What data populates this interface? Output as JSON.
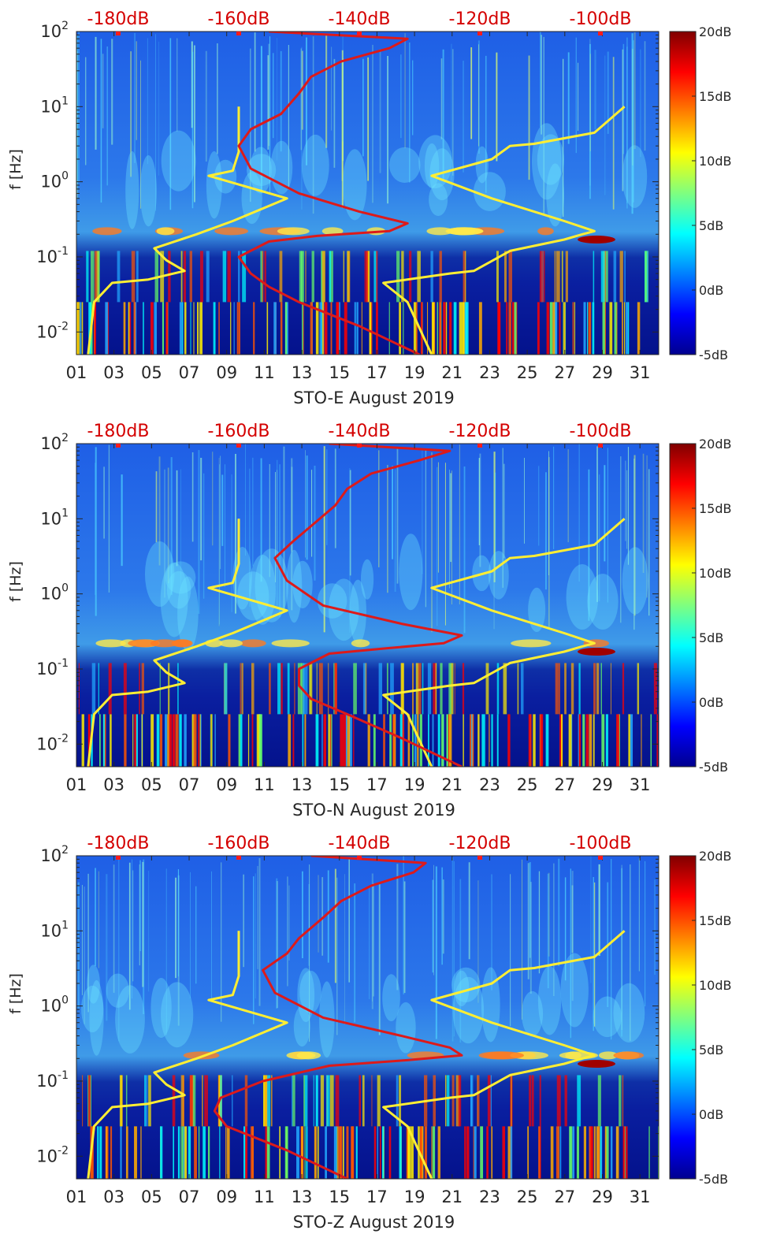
{
  "chart_data": [
    {
      "type": "heatmap",
      "xlabel": "STO-E August 2019",
      "ylabel": "f [Hz]",
      "xticks": [
        "01",
        "03",
        "05",
        "07",
        "09",
        "11",
        "13",
        "15",
        "17",
        "19",
        "21",
        "23",
        "25",
        "27",
        "29",
        "31"
      ],
      "yscale": "log",
      "ylim": [
        0.005,
        100
      ],
      "yticks": [
        {
          "base": "10",
          "exp": "-2"
        },
        {
          "base": "10",
          "exp": "-1"
        },
        {
          "base": "10",
          "exp": "0"
        },
        {
          "base": "10",
          "exp": "1"
        },
        {
          "base": "10",
          "exp": "2"
        }
      ],
      "top_axis_ticks": [
        "-180dB",
        "-160dB",
        "-140dB",
        "-120dB",
        "-100dB"
      ],
      "colorbar": {
        "ticks": [
          "20dB",
          "15dB",
          "10dB",
          "5dB",
          "0dB",
          "-5dB"
        ],
        "range": [
          -5,
          20
        ],
        "colormap": "jet"
      },
      "series": [
        {
          "color": "#ffee33",
          "points": [
            [
              -185,
              0.005
            ],
            [
              -184,
              0.025
            ],
            [
              -181,
              0.045
            ],
            [
              -175,
              0.05
            ],
            [
              -169,
              0.065
            ],
            [
              -172,
              0.09
            ],
            [
              -174,
              0.13
            ],
            [
              -167,
              0.2
            ],
            [
              -161,
              0.3
            ],
            [
              -152,
              0.6
            ],
            [
              -165,
              1.2
            ],
            [
              -161,
              1.4
            ],
            [
              -160,
              2.5
            ],
            [
              -160,
              5
            ],
            [
              -160,
              10
            ]
          ]
        },
        {
          "color": "#ffee33",
          "points": [
            [
              -128,
              0.005
            ],
            [
              -132,
              0.025
            ],
            [
              -136,
              0.045
            ],
            [
              -125,
              0.06
            ],
            [
              -121,
              0.065
            ],
            [
              -115,
              0.12
            ],
            [
              -111,
              0.14
            ],
            [
              -106,
              0.17
            ],
            [
              -103,
              0.2
            ],
            [
              -101,
              0.22
            ],
            [
              -106,
              0.3
            ],
            [
              -118,
              0.6
            ],
            [
              -128,
              1.2
            ],
            [
              -118,
              2
            ],
            [
              -115,
              3
            ],
            [
              -111,
              3.2
            ],
            [
              -101,
              4.5
            ],
            [
              -96,
              10
            ]
          ]
        },
        {
          "color": "#dd1a1a",
          "points": [
            [
              -130,
              0.005
            ],
            [
              -140,
              0.012
            ],
            [
              -150,
              0.025
            ],
            [
              -155,
              0.04
            ],
            [
              -158,
              0.06
            ],
            [
              -160,
              0.1
            ],
            [
              -155,
              0.16
            ],
            [
              -147,
              0.19
            ],
            [
              -135,
              0.22
            ],
            [
              -132,
              0.28
            ],
            [
              -140,
              0.4
            ],
            [
              -150,
              0.7
            ],
            [
              -158,
              1.5
            ],
            [
              -160,
              3
            ],
            [
              -158,
              5
            ],
            [
              -153,
              8
            ],
            [
              -150,
              15
            ],
            [
              -148,
              25
            ],
            [
              -143,
              40
            ],
            [
              -135,
              60
            ],
            [
              -132,
              80
            ],
            [
              -155,
              100
            ]
          ]
        }
      ]
    },
    {
      "type": "heatmap",
      "xlabel": "STO-N August 2019",
      "ylabel": "f [Hz]",
      "xticks": [
        "01",
        "03",
        "05",
        "07",
        "09",
        "11",
        "13",
        "15",
        "17",
        "19",
        "21",
        "23",
        "25",
        "27",
        "29",
        "31"
      ],
      "yscale": "log",
      "ylim": [
        0.005,
        100
      ],
      "yticks": [
        {
          "base": "10",
          "exp": "-2"
        },
        {
          "base": "10",
          "exp": "-1"
        },
        {
          "base": "10",
          "exp": "0"
        },
        {
          "base": "10",
          "exp": "1"
        },
        {
          "base": "10",
          "exp": "2"
        }
      ],
      "top_axis_ticks": [
        "-180dB",
        "-160dB",
        "-140dB",
        "-120dB",
        "-100dB"
      ],
      "colorbar": {
        "ticks": [
          "20dB",
          "15dB",
          "10dB",
          "5dB",
          "0dB",
          "-5dB"
        ],
        "range": [
          -5,
          20
        ],
        "colormap": "jet"
      },
      "series": [
        {
          "color": "#ffee33",
          "points": [
            [
              -185,
              0.005
            ],
            [
              -184,
              0.025
            ],
            [
              -181,
              0.045
            ],
            [
              -175,
              0.05
            ],
            [
              -169,
              0.065
            ],
            [
              -172,
              0.09
            ],
            [
              -174,
              0.13
            ],
            [
              -167,
              0.2
            ],
            [
              -161,
              0.3
            ],
            [
              -152,
              0.6
            ],
            [
              -165,
              1.2
            ],
            [
              -161,
              1.4
            ],
            [
              -160,
              2.5
            ],
            [
              -160,
              5
            ],
            [
              -160,
              10
            ]
          ]
        },
        {
          "color": "#ffee33",
          "points": [
            [
              -128,
              0.005
            ],
            [
              -132,
              0.025
            ],
            [
              -136,
              0.045
            ],
            [
              -125,
              0.06
            ],
            [
              -121,
              0.065
            ],
            [
              -115,
              0.12
            ],
            [
              -111,
              0.14
            ],
            [
              -106,
              0.17
            ],
            [
              -103,
              0.2
            ],
            [
              -101,
              0.22
            ],
            [
              -106,
              0.3
            ],
            [
              -118,
              0.6
            ],
            [
              -128,
              1.2
            ],
            [
              -118,
              2
            ],
            [
              -115,
              3
            ],
            [
              -111,
              3.2
            ],
            [
              -101,
              4.5
            ],
            [
              -96,
              10
            ]
          ]
        },
        {
          "color": "#dd1a1a",
          "points": [
            [
              -123,
              0.005
            ],
            [
              -133,
              0.012
            ],
            [
              -142,
              0.025
            ],
            [
              -148,
              0.04
            ],
            [
              -150,
              0.06
            ],
            [
              -150,
              0.1
            ],
            [
              -145,
              0.16
            ],
            [
              -135,
              0.19
            ],
            [
              -126,
              0.22
            ],
            [
              -123,
              0.28
            ],
            [
              -133,
              0.4
            ],
            [
              -146,
              0.7
            ],
            [
              -152,
              1.5
            ],
            [
              -154,
              3
            ],
            [
              -151,
              5
            ],
            [
              -148,
              8
            ],
            [
              -144,
              15
            ],
            [
              -142,
              25
            ],
            [
              -138,
              40
            ],
            [
              -130,
              60
            ],
            [
              -125,
              80
            ],
            [
              -145,
              100
            ]
          ]
        }
      ]
    },
    {
      "type": "heatmap",
      "xlabel": "STO-Z August 2019",
      "ylabel": "f [Hz]",
      "xticks": [
        "01",
        "03",
        "05",
        "07",
        "09",
        "11",
        "13",
        "15",
        "17",
        "19",
        "21",
        "23",
        "25",
        "27",
        "29",
        "31"
      ],
      "yscale": "log",
      "ylim": [
        0.005,
        100
      ],
      "yticks": [
        {
          "base": "10",
          "exp": "-2"
        },
        {
          "base": "10",
          "exp": "-1"
        },
        {
          "base": "10",
          "exp": "0"
        },
        {
          "base": "10",
          "exp": "1"
        },
        {
          "base": "10",
          "exp": "2"
        }
      ],
      "top_axis_ticks": [
        "-180dB",
        "-160dB",
        "-140dB",
        "-120dB",
        "-100dB"
      ],
      "colorbar": {
        "ticks": [
          "20dB",
          "15dB",
          "10dB",
          "5dB",
          "0dB",
          "-5dB"
        ],
        "range": [
          -5,
          20
        ],
        "colormap": "jet"
      },
      "series": [
        {
          "color": "#ffee33",
          "points": [
            [
              -185,
              0.005
            ],
            [
              -184,
              0.025
            ],
            [
              -181,
              0.045
            ],
            [
              -175,
              0.05
            ],
            [
              -169,
              0.065
            ],
            [
              -172,
              0.09
            ],
            [
              -174,
              0.13
            ],
            [
              -167,
              0.2
            ],
            [
              -161,
              0.3
            ],
            [
              -152,
              0.6
            ],
            [
              -165,
              1.2
            ],
            [
              -161,
              1.4
            ],
            [
              -160,
              2.5
            ],
            [
              -160,
              5
            ],
            [
              -160,
              10
            ]
          ]
        },
        {
          "color": "#ffee33",
          "points": [
            [
              -128,
              0.005
            ],
            [
              -132,
              0.025
            ],
            [
              -136,
              0.045
            ],
            [
              -125,
              0.06
            ],
            [
              -121,
              0.065
            ],
            [
              -115,
              0.12
            ],
            [
              -111,
              0.14
            ],
            [
              -106,
              0.17
            ],
            [
              -103,
              0.2
            ],
            [
              -101,
              0.22
            ],
            [
              -106,
              0.3
            ],
            [
              -118,
              0.6
            ],
            [
              -128,
              1.2
            ],
            [
              -118,
              2
            ],
            [
              -115,
              3
            ],
            [
              -111,
              3.2
            ],
            [
              -101,
              4.5
            ],
            [
              -96,
              10
            ]
          ]
        },
        {
          "color": "#dd1a1a",
          "points": [
            [
              -142,
              0.005
            ],
            [
              -152,
              0.012
            ],
            [
              -162,
              0.025
            ],
            [
              -164,
              0.04
            ],
            [
              -163,
              0.06
            ],
            [
              -156,
              0.1
            ],
            [
              -145,
              0.16
            ],
            [
              -132,
              0.19
            ],
            [
              -123,
              0.22
            ],
            [
              -125,
              0.28
            ],
            [
              -133,
              0.4
            ],
            [
              -146,
              0.7
            ],
            [
              -154,
              1.5
            ],
            [
              -156,
              3
            ],
            [
              -152,
              5
            ],
            [
              -150,
              8
            ],
            [
              -146,
              15
            ],
            [
              -143,
              25
            ],
            [
              -138,
              40
            ],
            [
              -131,
              60
            ],
            [
              -129,
              80
            ],
            [
              -148,
              100
            ]
          ]
        }
      ]
    }
  ]
}
